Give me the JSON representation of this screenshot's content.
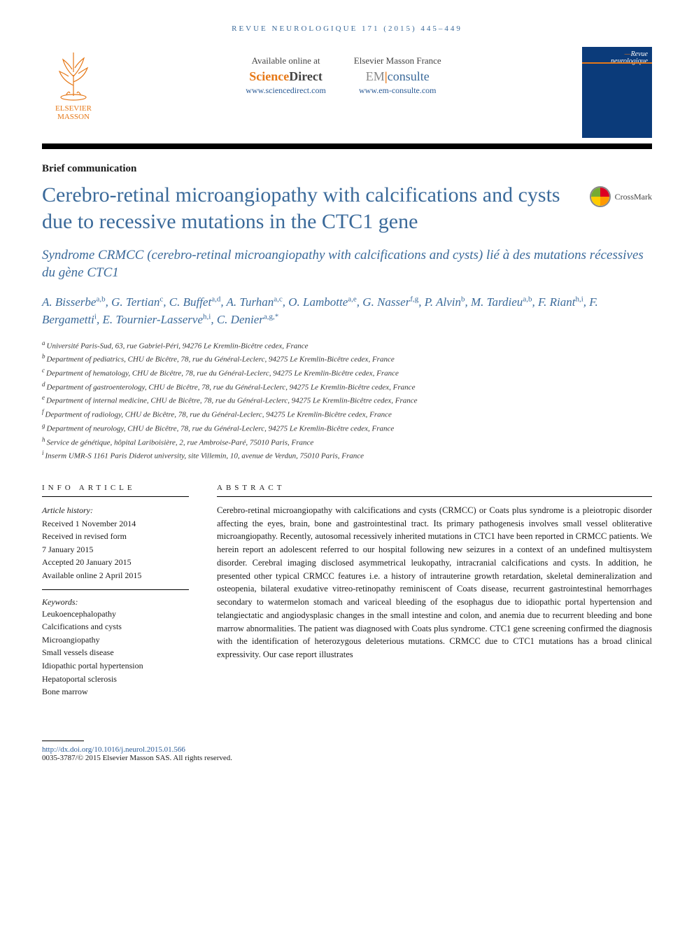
{
  "running_header": "REVUE NEUROLOGIQUE 171 (2015) 445–449",
  "publisher": {
    "name_line1": "ELSEVIER",
    "name_line2": "MASSON",
    "tree_color": "#e67817"
  },
  "availability": {
    "left": {
      "label": "Available online at",
      "brand_a": "Science",
      "brand_b": "Direct",
      "url": "www.sciencedirect.com"
    },
    "right": {
      "label": "Elsevier Masson France",
      "brand_a": "EM",
      "brand_b": "consulte",
      "url": "www.em-consulte.com"
    }
  },
  "journal_cover": {
    "line1_prefix": "—",
    "line1": "Revue",
    "line2": "neurologique",
    "bg_color": "#0b3b7a"
  },
  "crossmark_label": "CrossMark",
  "article_type": "Brief communication",
  "title": "Cerebro-retinal microangiopathy with calcifications and cysts due to recessive mutations in the CTC1 gene",
  "subtitle": "Syndrome CRMCC (cerebro-retinal microangiopathy with calcifications and cysts) lié à des mutations récessives du gène CTC1",
  "authors": [
    {
      "name": "A. Bisserbe",
      "aff": "a,b"
    },
    {
      "name": "G. Tertian",
      "aff": "c"
    },
    {
      "name": "C. Buffet",
      "aff": "a,d"
    },
    {
      "name": "A. Turhan",
      "aff": "a,c"
    },
    {
      "name": "O. Lambotte",
      "aff": "a,e"
    },
    {
      "name": "G. Nasser",
      "aff": "f,g"
    },
    {
      "name": "P. Alvin",
      "aff": "b"
    },
    {
      "name": "M. Tardieu",
      "aff": "a,b"
    },
    {
      "name": "F. Riant",
      "aff": "h,i"
    },
    {
      "name": "F. Bergametti",
      "aff": "i"
    },
    {
      "name": "E. Tournier-Lasserve",
      "aff": "h,i"
    },
    {
      "name": "C. Denier",
      "aff": "a,g,*"
    }
  ],
  "affiliations": [
    {
      "key": "a",
      "text": "Université Paris-Sud, 63, rue Gabriel-Péri, 94276 Le Kremlin-Bicêtre cedex, France"
    },
    {
      "key": "b",
      "text": "Department of pediatrics, CHU de Bicêtre, 78, rue du Général-Leclerc, 94275 Le Kremlin-Bicêtre cedex, France"
    },
    {
      "key": "c",
      "text": "Department of hematology, CHU de Bicêtre, 78, rue du Général-Leclerc, 94275 Le Kremlin-Bicêtre cedex, France"
    },
    {
      "key": "d",
      "text": "Department of gastroenterology, CHU de Bicêtre, 78, rue du Général-Leclerc, 94275 Le Kremlin-Bicêtre cedex, France"
    },
    {
      "key": "e",
      "text": "Department of internal medicine, CHU de Bicêtre, 78, rue du Général-Leclerc, 94275 Le Kremlin-Bicêtre cedex, France"
    },
    {
      "key": "f",
      "text": "Department of radiology, CHU de Bicêtre, 78, rue du Général-Leclerc, 94275 Le Kremlin-Bicêtre cedex, France"
    },
    {
      "key": "g",
      "text": "Department of neurology, CHU de Bicêtre, 78, rue du Général-Leclerc, 94275 Le Kremlin-Bicêtre cedex, France"
    },
    {
      "key": "h",
      "text": "Service de génétique, hôpital Lariboisière, 2, rue Ambroise-Paré, 75010 Paris, France"
    },
    {
      "key": "i",
      "text": "Inserm UMR-S 1161 Paris Diderot university, site Villemin, 10, avenue de Verdun, 75010 Paris, France"
    }
  ],
  "info": {
    "heading": "INFO ARTICLE",
    "history_label": "Article history:",
    "history": [
      "Received 1 November 2014",
      "Received in revised form",
      "7 January 2015",
      "Accepted 20 January 2015",
      "Available online 2 April 2015"
    ],
    "keywords_label": "Keywords:",
    "keywords": [
      "Leukoencephalopathy",
      "Calcifications and cysts",
      "Microangiopathy",
      "Small vessels disease",
      "Idiopathic portal hypertension",
      "Hepatoportal sclerosis",
      "Bone marrow"
    ]
  },
  "abstract": {
    "heading": "ABSTRACT",
    "text": "Cerebro-retinal microangiopathy with calcifications and cysts (CRMCC) or Coats plus syndrome is a pleiotropic disorder affecting the eyes, brain, bone and gastrointestinal tract. Its primary pathogenesis involves small vessel obliterative microangiopathy. Recently, autosomal recessively inherited mutations in CTC1 have been reported in CRMCC patients. We herein report an adolescent referred to our hospital following new seizures in a context of an undefined multisystem disorder. Cerebral imaging disclosed asymmetrical leukopathy, intracranial calcifications and cysts. In addition, he presented other typical CRMCC features i.e. a history of intrauterine growth retardation, skeletal demineralization and osteopenia, bilateral exudative vitreo-retinopathy reminiscent of Coats disease, recurrent gastrointestinal hemorrhages secondary to watermelon stomach and variceal bleeding of the esophagus due to idiopathic portal hypertension and telangiectatic and angiodysplasic changes in the small intestine and colon, and anemia due to recurrent bleeding and bone marrow abnormalities. The patient was diagnosed with Coats plus syndrome. CTC1 gene screening confirmed the diagnosis with the identification of heterozygous deleterious mutations. CRMCC due to CTC1 mutations has a broad clinical expressivity. Our case report illustrates"
  },
  "footer": {
    "doi": "http://dx.doi.org/10.1016/j.neurol.2015.01.566",
    "copyright": "0035-3787/© 2015 Elsevier Masson SAS. All rights reserved."
  },
  "colors": {
    "accent_blue": "#3b6a9a",
    "link_blue": "#2a5a95",
    "orange": "#e67817",
    "rule_black": "#000000"
  }
}
